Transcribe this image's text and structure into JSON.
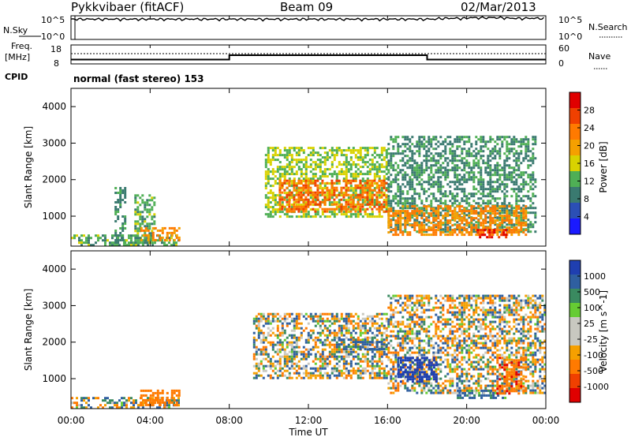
{
  "header": {
    "title": "Pykkvibaer (fitACF)",
    "beam": "Beam 09",
    "date": "02/Mar/2013"
  },
  "nsky_panel": {
    "left_label": "N.Sky",
    "left_ticks": [
      "10^5",
      "10^0"
    ],
    "right_ticks": [
      "10^5",
      "10^0"
    ],
    "right_label": "N.Search"
  },
  "freq_panel": {
    "left_label_top": "Freq.",
    "left_label_unit": "[MHz]",
    "left_ticks": [
      "18",
      "8"
    ],
    "right_ticks": [
      "60",
      "0"
    ],
    "right_label": "Nave",
    "cpid_label": "CPID",
    "mode_text": "normal (fast stereo) 153"
  },
  "x_axis": {
    "ticks": [
      "00:00",
      "04:00",
      "08:00",
      "12:00",
      "16:00",
      "20:00",
      "00:00"
    ],
    "label": "Time UT"
  },
  "power_panel": {
    "ylabel": "Slant Range [km]",
    "yticks": [
      "1000",
      "2000",
      "3000",
      "4000"
    ],
    "colorbar_label": "Power [dB]",
    "colorbar_ticks": [
      "28",
      "24",
      "20",
      "16",
      "12",
      "8",
      "4"
    ],
    "colors": [
      "#1a1aff",
      "#2b4fb5",
      "#3a7a70",
      "#4faf55",
      "#d9d200",
      "#f5a000",
      "#ff7a00",
      "#f04000",
      "#e00000"
    ]
  },
  "velocity_panel": {
    "ylabel": "Slant Range [km]",
    "yticks": [
      "1000",
      "2000",
      "3000",
      "4000"
    ],
    "colorbar_label": "Velocity [m s^-1]",
    "colorbar_ticks": [
      "1000",
      "500",
      "100",
      "25",
      "-25",
      "-100",
      "-500",
      "-1000"
    ],
    "colors": [
      "#1f3fb0",
      "#2f5fa0",
      "#3a8a60",
      "#66cc33",
      "#c8c8c0",
      "#c8c8c0",
      "#f5a000",
      "#ff7a00",
      "#f04000",
      "#e00000"
    ]
  },
  "chart_data": [
    {
      "type": "line",
      "name": "N.Sky / N.Search",
      "x_unit": "hours UT",
      "x": [
        0,
        0.2,
        4,
        8,
        12,
        16,
        18.5,
        20,
        22,
        24
      ],
      "y": [
        20000.0,
        20000.0,
        20000.0,
        20000.0,
        20000.0,
        20000.0,
        30000.0,
        40000.0,
        30000.0,
        20000.0
      ],
      "ylim": [
        "1e0",
        "1e5"
      ]
    },
    {
      "type": "line",
      "name": "Freq [MHz]",
      "x": [
        0,
        8,
        8,
        18,
        18,
        24
      ],
      "y": [
        10.3,
        10.3,
        12.6,
        12.6,
        10.3,
        10.3
      ],
      "ylim": [
        8,
        18
      ]
    },
    {
      "type": "heatmap",
      "title": "Power",
      "xlim": [
        0,
        24
      ],
      "ylim": [
        180,
        4500
      ],
      "ylabel": "Slant Range [km]",
      "xlabel": "Time UT",
      "colorbar": {
        "label": "Power [dB]",
        "range": [
          0,
          32
        ]
      },
      "regions": [
        {
          "t": [
            0,
            5.5
          ],
          "r": [
            180,
            500
          ],
          "value": 12
        },
        {
          "t": [
            2.2,
            2.7
          ],
          "r": [
            300,
            1800
          ],
          "value": 10
        },
        {
          "t": [
            3.2,
            4.2
          ],
          "r": [
            300,
            1600
          ],
          "value": 12
        },
        {
          "t": [
            3.5,
            5.5
          ],
          "r": [
            350,
            700
          ],
          "value": 22
        },
        {
          "t": [
            9.8,
            16.0
          ],
          "r": [
            1000,
            2900
          ],
          "value": 14
        },
        {
          "t": [
            10.5,
            16.0
          ],
          "r": [
            1100,
            2000
          ],
          "value": 24
        },
        {
          "t": [
            16.0,
            23.5
          ],
          "r": [
            600,
            3200
          ],
          "value": 10
        },
        {
          "t": [
            16.0,
            23.0
          ],
          "r": [
            500,
            1300
          ],
          "value": 22
        },
        {
          "t": [
            20.5,
            22.0
          ],
          "r": [
            450,
            650
          ],
          "value": 28
        }
      ]
    },
    {
      "type": "heatmap",
      "title": "Velocity",
      "xlim": [
        0,
        24
      ],
      "ylim": [
        180,
        4500
      ],
      "ylabel": "Slant Range [km]",
      "xlabel": "Time UT",
      "colorbar": {
        "label": "Velocity [m s^-1]",
        "range": [
          -1000,
          1000
        ]
      },
      "regions": [
        {
          "t": [
            0,
            5.5
          ],
          "r": [
            180,
            500
          ],
          "value": 0
        },
        {
          "t": [
            3.5,
            5.5
          ],
          "r": [
            300,
            700
          ],
          "value": -300
        },
        {
          "t": [
            9.2,
            16.0
          ],
          "r": [
            1000,
            2800
          ],
          "value": 0
        },
        {
          "t": [
            13.5,
            16.0
          ],
          "r": [
            1800,
            2100
          ],
          "value": 200
        },
        {
          "t": [
            16.0,
            24.0
          ],
          "r": [
            600,
            3300
          ],
          "value": 0
        },
        {
          "t": [
            16.5,
            18.5
          ],
          "r": [
            900,
            1600
          ],
          "value": 700
        },
        {
          "t": [
            19.5,
            22.0
          ],
          "r": [
            450,
            700
          ],
          "value": 150
        },
        {
          "t": [
            21.5,
            23.0
          ],
          "r": [
            600,
            1600
          ],
          "value": -400
        }
      ]
    }
  ]
}
